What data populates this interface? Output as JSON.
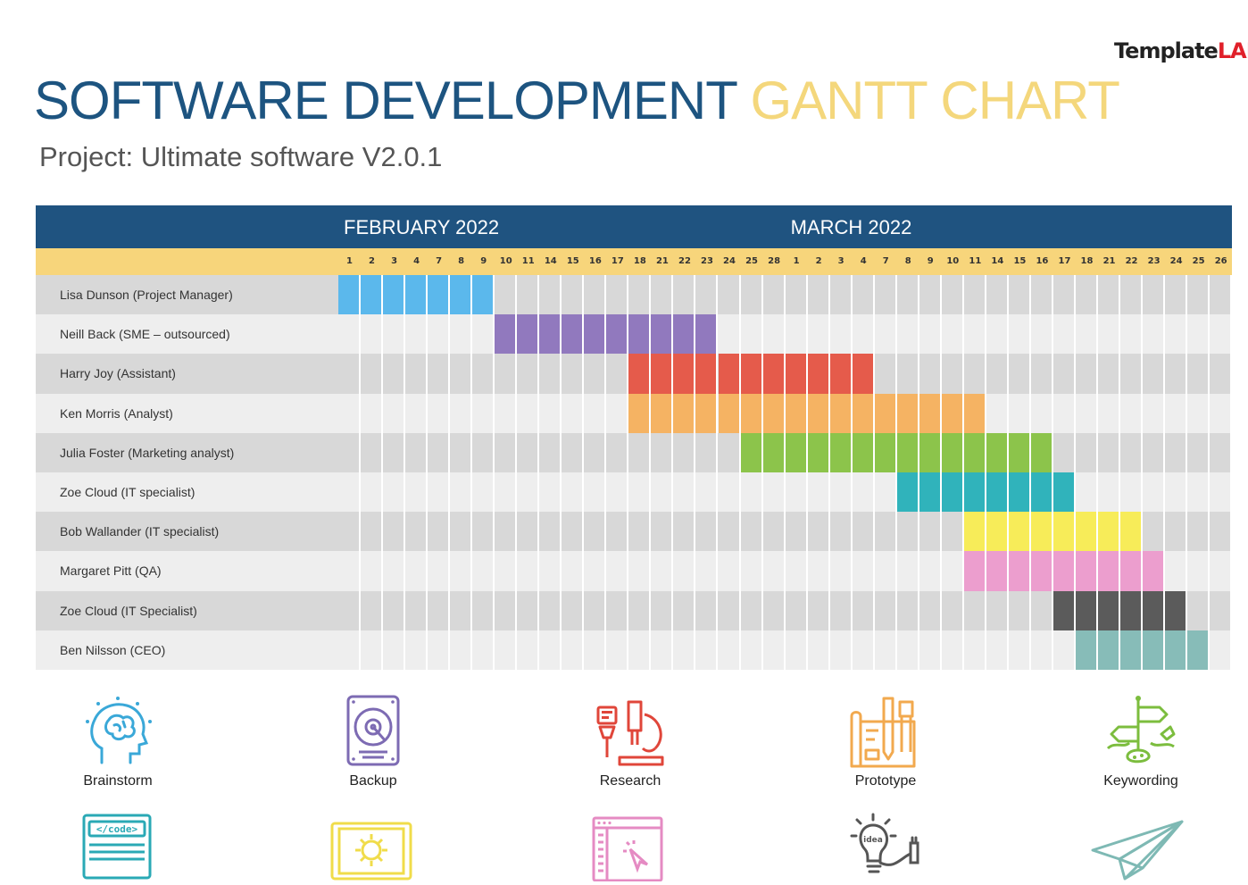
{
  "logo": {
    "word_1": "Template",
    "word_2": "LAB"
  },
  "title": {
    "part_1": "SOFTWARE DEVELOPMENT",
    "part_2": "GANTT CHART"
  },
  "subtitle": "Project: Ultimate software V2.0.1",
  "colors": {
    "header_blue": "#1f5380",
    "day_row_yellow": "#f7d57b",
    "row_dark": "#d8d8d8",
    "row_light": "#eeeeee",
    "title_blue": "#1d5480",
    "title_yellow": "#f4d77c"
  },
  "chart_data": {
    "type": "gantt",
    "months": [
      {
        "label": "FEBRUARY 2022",
        "start_index": 0
      },
      {
        "label": "MARCH 2022",
        "start_index": 20
      }
    ],
    "days": [
      "1",
      "2",
      "3",
      "4",
      "7",
      "8",
      "9",
      "10",
      "11",
      "14",
      "15",
      "16",
      "17",
      "18",
      "21",
      "22",
      "23",
      "24",
      "25",
      "28",
      "1",
      "2",
      "3",
      "4",
      "7",
      "8",
      "9",
      "10",
      "11",
      "14",
      "15",
      "16",
      "17",
      "18",
      "21",
      "22",
      "23",
      "24",
      "25",
      "26"
    ],
    "tasks": [
      {
        "name": "Lisa Dunson (Project Manager)",
        "start": 0,
        "end": 6,
        "color": "#5bb8ec"
      },
      {
        "name": "Neill Back (SME – outsourced)",
        "start": 7,
        "end": 16,
        "color": "#9179be"
      },
      {
        "name": "Harry Joy (Assistant)",
        "start": 13,
        "end": 23,
        "color": "#e55b4b"
      },
      {
        "name": "Ken Morris (Analyst)",
        "start": 13,
        "end": 28,
        "color": "#f5b363"
      },
      {
        "name": "Julia Foster (Marketing analyst)",
        "start": 18,
        "end": 31,
        "color": "#8cc44b"
      },
      {
        "name": "Zoe Cloud (IT specialist)",
        "start": 25,
        "end": 32,
        "color": "#30b3bb"
      },
      {
        "name": "Bob Wallander (IT specialist)",
        "start": 28,
        "end": 35,
        "color": "#f7ec59"
      },
      {
        "name": "Margaret Pitt (QA)",
        "start": 28,
        "end": 36,
        "color": "#ec9ece"
      },
      {
        "name": "Zoe Cloud (IT Specialist)",
        "start": 32,
        "end": 37,
        "color": "#5b5b5b"
      },
      {
        "name": "Ben Nilsson (CEO)",
        "start": 33,
        "end": 38,
        "color": "#87bcb8"
      }
    ]
  },
  "icons": [
    {
      "label": "Brainstorm",
      "icon": "brain-head-icon",
      "color": "#3aa8d8"
    },
    {
      "label": "Backup",
      "icon": "hard-drive-icon",
      "color": "#7d6bb3"
    },
    {
      "label": "Research",
      "icon": "microscope-icon",
      "color": "#e0463a"
    },
    {
      "label": "Prototype",
      "icon": "blueprint-icon",
      "color": "#f2a94e"
    },
    {
      "label": "Keywording",
      "icon": "signpost-icon",
      "color": "#7cbd3e"
    }
  ],
  "icons_partial": [
    {
      "icon": "code-laptop-icon",
      "color": "#2aa9b5",
      "code_text": "</code>"
    },
    {
      "icon": "monitor-icon",
      "color": "#f0dc4a"
    },
    {
      "icon": "browser-window-icon",
      "color": "#e58bc3"
    },
    {
      "icon": "idea-bulb-icon",
      "color": "#555555",
      "bulb_text": "idea"
    },
    {
      "icon": "paper-plane-icon",
      "color": "#7eb9b4"
    }
  ]
}
